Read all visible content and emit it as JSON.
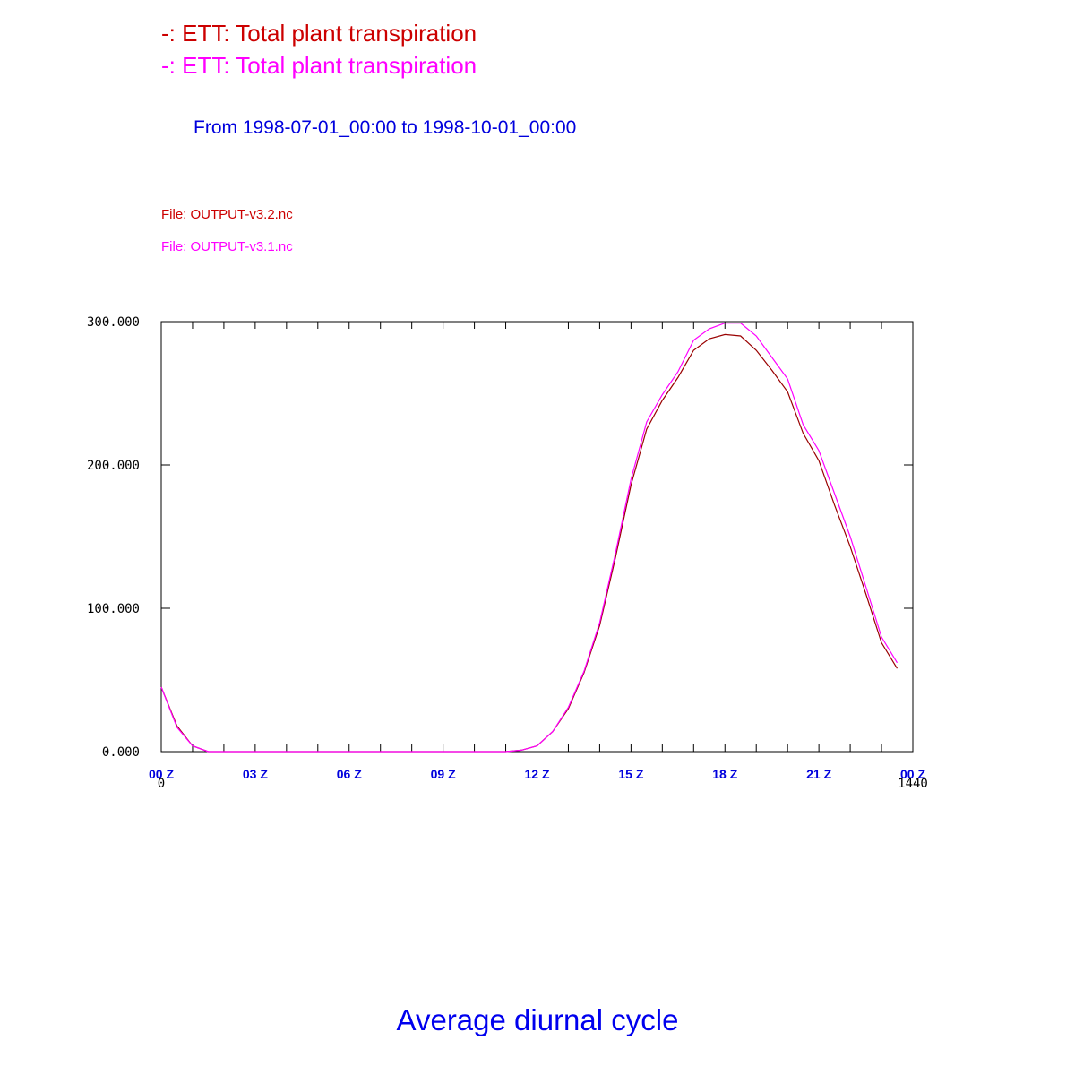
{
  "header": {
    "legend": [
      {
        "text": "-: ETT: Total plant transpiration",
        "color": "#cc0000"
      },
      {
        "text": "-: ETT: Total plant transpiration",
        "color": "#ff00ff"
      }
    ],
    "period": "From 1998-07-01_00:00 to 1998-10-01_00:00",
    "files": [
      {
        "text": "File: OUTPUT-v3.2.nc",
        "color": "#cc0000"
      },
      {
        "text": "File: OUTPUT-v3.1.nc",
        "color": "#ff00ff"
      }
    ]
  },
  "footer": {
    "title": "Average diurnal cycle"
  },
  "chart_data": {
    "type": "line",
    "xlim": [
      0,
      1440
    ],
    "ylim": [
      0,
      300
    ],
    "yticks": [
      0,
      100,
      200,
      300
    ],
    "ytick_labels": [
      "0.000",
      "100.000",
      "200.000",
      "300.000"
    ],
    "xticks": [
      0,
      180,
      360,
      540,
      720,
      900,
      1080,
      1260,
      1440
    ],
    "xtick_labels": [
      "00 Z",
      "03 Z",
      "06 Z",
      "09 Z",
      "12 Z",
      "15 Z",
      "18 Z",
      "21 Z",
      "00 Z"
    ],
    "x_minor_interval": 60,
    "x_range_labels": [
      "0",
      "1440"
    ],
    "x": [
      0,
      30,
      60,
      90,
      120,
      150,
      660,
      690,
      720,
      750,
      780,
      810,
      840,
      870,
      900,
      930,
      960,
      990,
      1020,
      1050,
      1080,
      1110,
      1140,
      1170,
      1200,
      1230,
      1260,
      1290,
      1320,
      1350,
      1380,
      1410
    ],
    "series": [
      {
        "color": "#990000",
        "values": [
          45,
          18,
          4,
          0,
          0,
          0,
          0,
          1,
          4,
          14,
          30,
          55,
          88,
          135,
          186,
          225,
          245,
          261,
          280,
          288,
          291,
          290,
          280,
          266,
          251,
          222,
          203,
          172,
          143,
          110,
          76,
          58
        ]
      },
      {
        "color": "#ff00ff",
        "values": [
          45,
          17,
          4,
          0,
          0,
          0,
          0,
          1,
          4,
          14,
          31,
          56,
          90,
          138,
          190,
          230,
          249,
          265,
          287,
          295,
          299,
          299,
          290,
          275,
          260,
          228,
          210,
          180,
          150,
          115,
          80,
          62
        ]
      }
    ]
  }
}
